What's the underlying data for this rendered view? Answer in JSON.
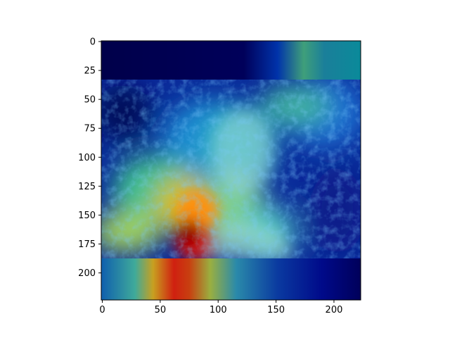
{
  "figure": {
    "description_layer": "Grad-CAM style heatmap overlay on a grayscale portrait photo",
    "image_extent": {
      "x": [
        0,
        224
      ],
      "y": [
        0,
        224
      ]
    }
  },
  "axes": {
    "x_ticks": [
      "0",
      "50",
      "100",
      "150",
      "200"
    ],
    "x_tick_values": [
      0,
      50,
      100,
      150,
      200
    ],
    "y_ticks": [
      "0",
      "25",
      "50",
      "75",
      "100",
      "125",
      "150",
      "175",
      "200"
    ],
    "y_tick_values": [
      0,
      25,
      50,
      75,
      100,
      125,
      150,
      175,
      200
    ]
  },
  "colormap": {
    "name": "jet",
    "stops": [
      "#00007f",
      "#0000ff",
      "#007fff",
      "#00ffff",
      "#7fff7f",
      "#ffff00",
      "#ff7f00",
      "#ff0000",
      "#7f0000"
    ]
  }
}
